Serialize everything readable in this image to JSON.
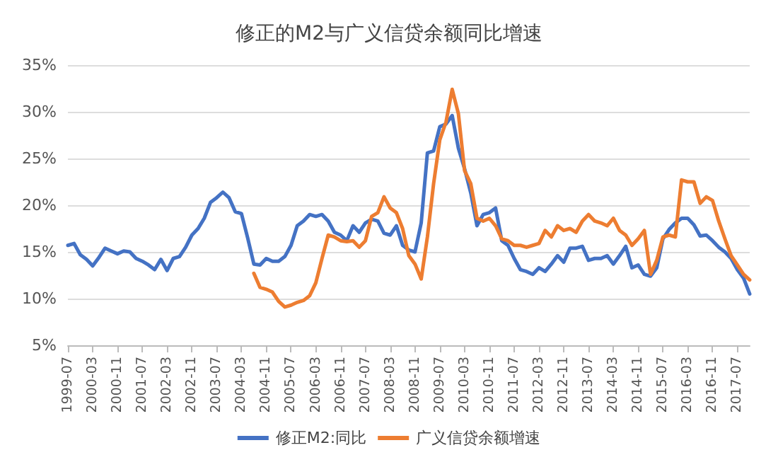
{
  "chart_data": {
    "type": "line",
    "title": "修正的M2与广义信贷余额同比增速",
    "categories": [
      "1999-07",
      null,
      null,
      null,
      "2000-03",
      null,
      null,
      null,
      "2000-11",
      null,
      null,
      null,
      "2001-07",
      null,
      null,
      null,
      "2002-03",
      null,
      null,
      null,
      "2002-11",
      null,
      null,
      null,
      "2003-07",
      null,
      null,
      null,
      "2004-03",
      null,
      null,
      null,
      "2004-11",
      null,
      null,
      null,
      "2005-07",
      null,
      null,
      null,
      "2006-03",
      null,
      null,
      null,
      "2006-11",
      null,
      null,
      null,
      "2007-07",
      null,
      null,
      null,
      "2008-03",
      null,
      null,
      null,
      "2008-11",
      null,
      null,
      null,
      "2009-07",
      null,
      null,
      null,
      "2010-03",
      null,
      null,
      null,
      "2010-11",
      null,
      null,
      null,
      "2011-07",
      null,
      null,
      null,
      "2012-03",
      null,
      null,
      null,
      "2012-11",
      null,
      null,
      null,
      "2013-07",
      null,
      null,
      null,
      "2014-03",
      null,
      null,
      null,
      "2014-11",
      null,
      null,
      null,
      "2015-07",
      null,
      null,
      null,
      "2016-03",
      null,
      null,
      null,
      "2016-11",
      null,
      null,
      null,
      "2017-07",
      null,
      null
    ],
    "series": [
      {
        "name": "修正M2:同比",
        "color": "#4472c4",
        "values": [
          15.7,
          15.9,
          14.7,
          14.2,
          13.5,
          14.4,
          15.4,
          15.1,
          14.8,
          15.1,
          15.0,
          14.3,
          14.0,
          13.6,
          13.1,
          14.2,
          13.0,
          14.3,
          14.5,
          15.5,
          16.8,
          17.5,
          18.6,
          20.3,
          20.8,
          21.4,
          20.8,
          19.3,
          19.1,
          16.5,
          13.7,
          13.6,
          14.3,
          14.0,
          14.0,
          14.5,
          15.7,
          17.8,
          18.3,
          19.0,
          18.8,
          19.0,
          18.3,
          17.1,
          16.8,
          16.2,
          17.8,
          17.1,
          18.1,
          18.5,
          18.3,
          17.0,
          16.8,
          17.8,
          15.7,
          15.2,
          15.0,
          18.1,
          25.6,
          25.8,
          28.4,
          28.7,
          29.6,
          26.1,
          23.9,
          21.3,
          17.8,
          19.0,
          19.2,
          19.7,
          16.2,
          15.7,
          14.3,
          13.1,
          12.9,
          12.6,
          13.3,
          12.9,
          13.7,
          14.6,
          13.9,
          15.4,
          15.4,
          15.6,
          14.1,
          14.3,
          14.3,
          14.6,
          13.7,
          14.6,
          15.6,
          13.3,
          13.6,
          12.6,
          12.4,
          13.3,
          16.4,
          17.4,
          18.1,
          18.6,
          18.6,
          17.9,
          16.7,
          16.8,
          16.2,
          15.5,
          15.0,
          14.3,
          13.1,
          12.2,
          10.5
        ]
      },
      {
        "name": "广义信贷余额增速",
        "color": "#ed7d31",
        "values": [
          null,
          null,
          null,
          null,
          null,
          null,
          null,
          null,
          null,
          null,
          null,
          null,
          null,
          null,
          null,
          null,
          null,
          null,
          null,
          null,
          null,
          null,
          null,
          null,
          null,
          null,
          null,
          null,
          null,
          null,
          12.7,
          11.2,
          11.0,
          10.7,
          9.7,
          9.1,
          9.3,
          9.6,
          9.8,
          10.3,
          11.7,
          14.3,
          16.8,
          16.6,
          16.2,
          16.1,
          16.2,
          15.5,
          16.2,
          18.8,
          19.2,
          20.9,
          19.7,
          19.2,
          17.5,
          14.6,
          13.7,
          12.1,
          16.6,
          22.3,
          27.0,
          28.9,
          32.4,
          29.8,
          23.7,
          22.3,
          18.6,
          18.3,
          18.6,
          17.8,
          16.4,
          16.2,
          15.7,
          15.7,
          15.5,
          15.7,
          15.9,
          17.3,
          16.6,
          17.8,
          17.3,
          17.5,
          17.1,
          18.3,
          19.0,
          18.3,
          18.1,
          17.8,
          18.6,
          17.3,
          16.8,
          15.7,
          16.4,
          17.3,
          12.6,
          14.1,
          16.6,
          16.8,
          16.6,
          22.7,
          22.5,
          22.5,
          20.2,
          20.9,
          20.5,
          18.3,
          16.4,
          14.6,
          13.6,
          12.6,
          12.0
        ]
      }
    ],
    "ylim": [
      5,
      35
    ],
    "yticks": [
      {
        "value": 5,
        "label": "5%"
      },
      {
        "value": 10,
        "label": "10%"
      },
      {
        "value": 15,
        "label": "15%"
      },
      {
        "value": 20,
        "label": "20%"
      },
      {
        "value": 25,
        "label": "25%"
      },
      {
        "value": 30,
        "label": "30%"
      },
      {
        "value": 35,
        "label": "35%"
      }
    ],
    "grid": "y",
    "legend": "bottom",
    "marker": "none",
    "line_style": "solid"
  }
}
